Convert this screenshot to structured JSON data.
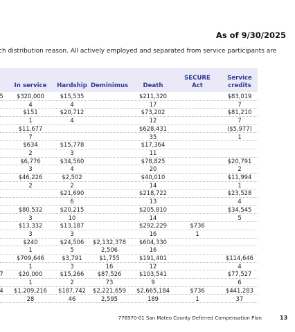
{
  "header": {
    "as_of": "As of 9/30/2025"
  },
  "intro": "ch distribution reason. All actively employed and separated from service participants are",
  "table": {
    "columns": [
      null,
      "In service",
      "Hardship",
      "Deminimus",
      "Death",
      "SECURE Act",
      "Service credits"
    ],
    "rows": [
      [
        "5",
        "$320,000",
        "$15,535",
        null,
        "$211,320",
        null,
        "$83,019"
      ],
      [
        null,
        "4",
        "4",
        null,
        "17",
        null,
        "7"
      ],
      [
        null,
        "$151",
        "$20,712",
        null,
        "$73,202",
        null,
        "$81,210"
      ],
      [
        null,
        "1",
        "4",
        null,
        "12",
        null,
        "7"
      ],
      [
        null,
        "$11,677",
        null,
        null,
        "$628,431",
        null,
        "($5,977)"
      ],
      [
        null,
        "7",
        null,
        null,
        "35",
        null,
        "1"
      ],
      [
        null,
        "$634",
        "$15,778",
        null,
        "$17,364",
        null,
        null
      ],
      [
        null,
        "2",
        "3",
        null,
        "11",
        null,
        null
      ],
      [
        null,
        "$6,776",
        "$34,560",
        null,
        "$78,825",
        null,
        "$20,791"
      ],
      [
        null,
        "3",
        "4",
        null,
        "20",
        null,
        "2"
      ],
      [
        null,
        "$46,226",
        "$2,502",
        null,
        "$40,010",
        null,
        "$11,994"
      ],
      [
        null,
        "2",
        "2",
        null,
        "14",
        null,
        "1"
      ],
      [
        null,
        null,
        "$21,690",
        null,
        "$218,722",
        null,
        "$23,528"
      ],
      [
        null,
        null,
        "6",
        null,
        "13",
        null,
        "4"
      ],
      [
        null,
        "$80,532",
        "$20,215",
        null,
        "$205,810",
        null,
        "$34,545"
      ],
      [
        null,
        "3",
        "10",
        null,
        "14",
        null,
        "5"
      ],
      [
        null,
        "$13,332",
        "$13,187",
        null,
        "$292,229",
        "$736",
        null
      ],
      [
        null,
        "3",
        "3",
        null,
        "16",
        "1",
        null
      ],
      [
        null,
        "$240",
        "$24,506",
        "$2,132,378",
        "$604,330",
        null,
        null
      ],
      [
        null,
        "1",
        "5",
        "2,506",
        "16",
        null,
        null
      ],
      [
        null,
        "$709,646",
        "$3,791",
        "$1,755",
        "$191,401",
        null,
        "$114,646"
      ],
      [
        null,
        "1",
        "3",
        "16",
        "12",
        null,
        "4"
      ],
      [
        "7",
        "$20,000",
        "$15,266",
        "$87,526",
        "$103,541",
        null,
        "$77,527"
      ],
      [
        null,
        "1",
        "2",
        "73",
        "9",
        null,
        "6"
      ],
      [
        "4",
        "$1,209,216",
        "$187,742",
        "$2,221,659",
        "$2,665,184",
        "$736",
        "$441,283"
      ],
      [
        null,
        "28",
        "46",
        "2,595",
        "189",
        "1",
        "37"
      ]
    ]
  },
  "footer": {
    "plan": "776970-01 San Mateo County Deferred Compensation Plan",
    "page": "13"
  }
}
